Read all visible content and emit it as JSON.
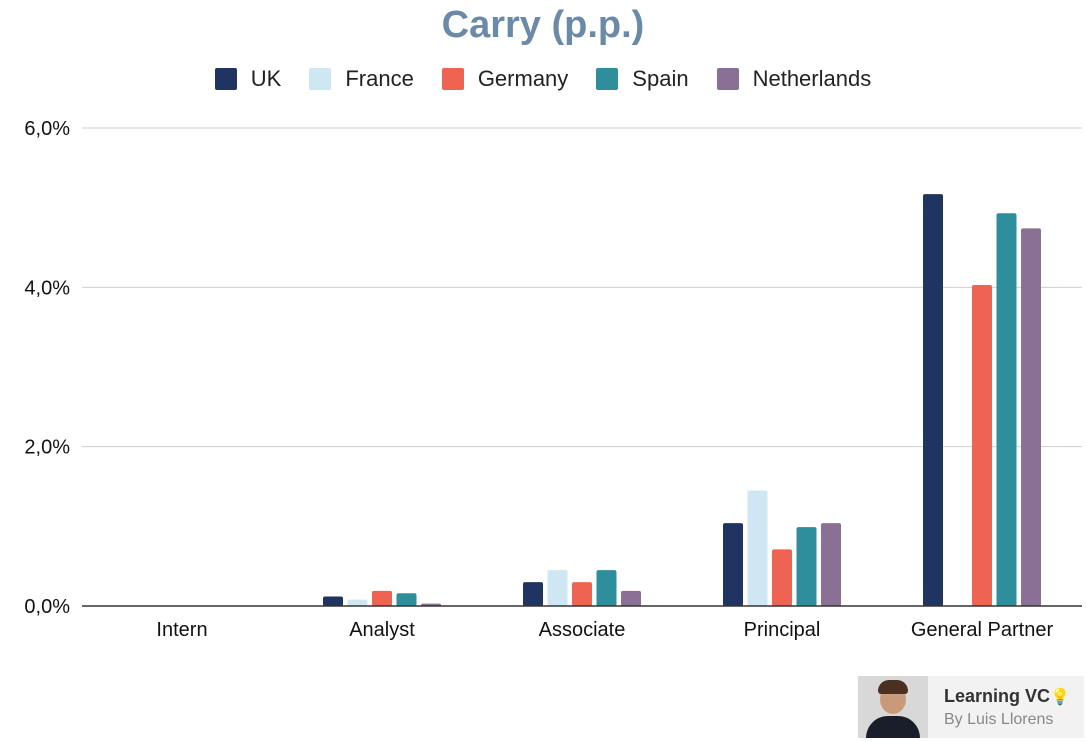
{
  "chart_data": {
    "type": "bar",
    "title": "Carry (p.p.)",
    "categories": [
      "Intern",
      "Analyst",
      "Associate",
      "Principal",
      "General Partner"
    ],
    "series": [
      {
        "name": "UK",
        "color": "#1f3461",
        "values": [
          0,
          0.12,
          0.3,
          1.04,
          5.17
        ]
      },
      {
        "name": "France",
        "color": "#cfe6f3",
        "values": [
          0,
          0.08,
          0.45,
          1.45,
          0
        ]
      },
      {
        "name": "Germany",
        "color": "#ee6352",
        "values": [
          0,
          0.19,
          0.3,
          0.71,
          4.03
        ]
      },
      {
        "name": "Spain",
        "color": "#2e8e9b",
        "values": [
          0,
          0.16,
          0.45,
          0.99,
          4.93
        ]
      },
      {
        "name": "Netherlands",
        "color": "#8a7094",
        "values": [
          0,
          0.03,
          0.19,
          1.04,
          4.74
        ]
      }
    ],
    "ylim": [
      0,
      6
    ],
    "yticks": [
      "0,0%",
      "2,0%",
      "4,0%",
      "6,0%"
    ],
    "ytick_values": [
      0,
      2,
      4,
      6
    ],
    "grid": true,
    "legend_position": "top-center"
  },
  "brand": {
    "name": "Learning VC",
    "byline": "By Luis Llorens"
  }
}
